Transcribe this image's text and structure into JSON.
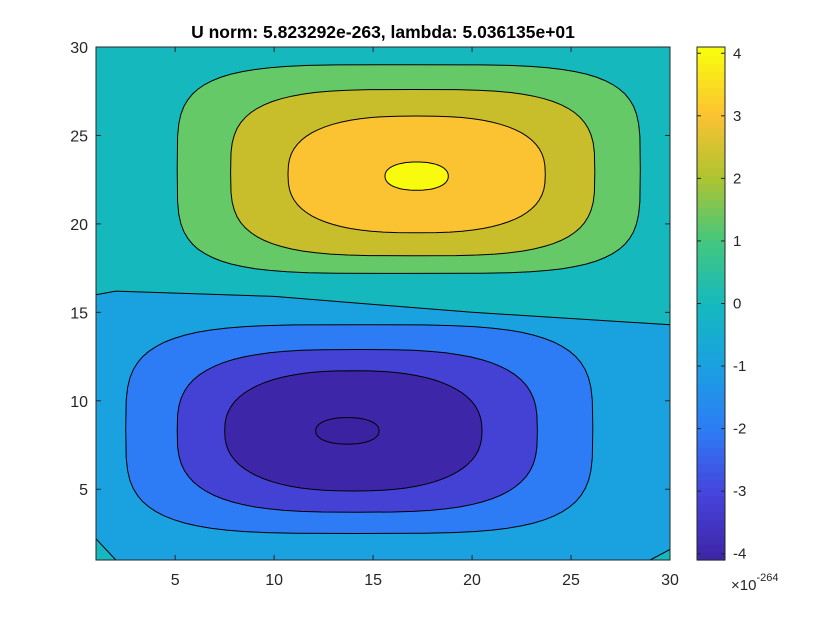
{
  "chart_data": {
    "type": "contourf",
    "title": "U norm: 5.823292e-263, lambda: 5.036135e+01",
    "xlabel": "",
    "ylabel": "",
    "xlim": [
      1,
      30
    ],
    "ylim": [
      1,
      30
    ],
    "x_ticks": [
      5,
      10,
      15,
      20,
      25,
      30
    ],
    "y_ticks": [
      5,
      10,
      15,
      20,
      25,
      30
    ],
    "colorbar": {
      "range": [
        -4.1,
        4.1
      ],
      "ticks": [
        -4,
        -3,
        -2,
        -1,
        0,
        1,
        2,
        3,
        4
      ],
      "exponent_label": "×10",
      "exponent_power": "-264",
      "colormap": "parula"
    },
    "contour_levels": [
      -4,
      -3,
      -2,
      -1,
      0,
      1,
      2,
      3,
      4
    ],
    "field": {
      "description_values": "two-lobe mode: positive peak and negative trough",
      "positive_peak": {
        "x": 17,
        "y": 22.7,
        "value": 4.1
      },
      "negative_peak": {
        "x": 13.7,
        "y": 8.3,
        "value": -4.1
      },
      "zero_line_y_left": 16.7,
      "zero_line_y_right": 14.3,
      "boundary_value": 0
    },
    "level_colors": {
      "-4": "#3e26a8",
      "-3": "#4442d4",
      "-2": "#2d7cf5",
      "-1": "#1aa2e0",
      "0": "#15b9bd",
      "1": "#64c966",
      "2": "#c8bd2a",
      "3": "#fbc232",
      "4": "#f9fb0e"
    }
  }
}
